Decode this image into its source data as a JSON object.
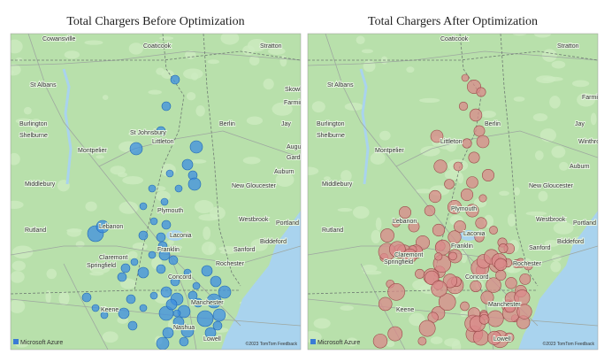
{
  "panels": [
    {
      "title": "Total Chargers Before Optimization",
      "labels": [
        "Cowansville",
        "Coaticook",
        "Stratton",
        "St Albans",
        "Skowh",
        "Farming",
        "Burlington",
        "Berlin",
        "Jay",
        "Shelburne",
        "St Johnsbury",
        "Littleton",
        "Augu",
        "Montpelier",
        "Gard",
        "Auburn",
        "Middlebury",
        "New Gloucester",
        "Plymouth",
        "Westbrook",
        "Portland",
        "Rutland",
        "Lebanon",
        "Laconia",
        "Biddeford",
        "Claremont",
        "Franklin",
        "Sanford",
        "Springfield",
        "Concord",
        "Rochester",
        "Keene",
        "Manchester",
        "Nashua",
        "Lowell"
      ],
      "brand": "Microsoft Azure",
      "credit": "©2023 TomTom Feedback"
    },
    {
      "title": "Total Chargers After Optimization",
      "labels": [
        "Coaticook",
        "Stratton",
        "St Albans",
        "Farming",
        "Burlington",
        "Berlin",
        "Jay",
        "Shelburne",
        "Littleton",
        "Winthrop",
        "Montpelier",
        "Auburn",
        "Middlebury",
        "New Gloucester",
        "Plymouth",
        "Westbrook",
        "Portland",
        "Rutland",
        "Lebanon",
        "Laconia",
        "Biddeford",
        "Claremont",
        "Franklin",
        "Sanford",
        "Springfield",
        "Concord",
        "Rochester",
        "Keene",
        "Manchester",
        "Lowell"
      ],
      "brand": "Microsoft Azure",
      "credit": "©2023 TomTom Feedback"
    }
  ]
}
